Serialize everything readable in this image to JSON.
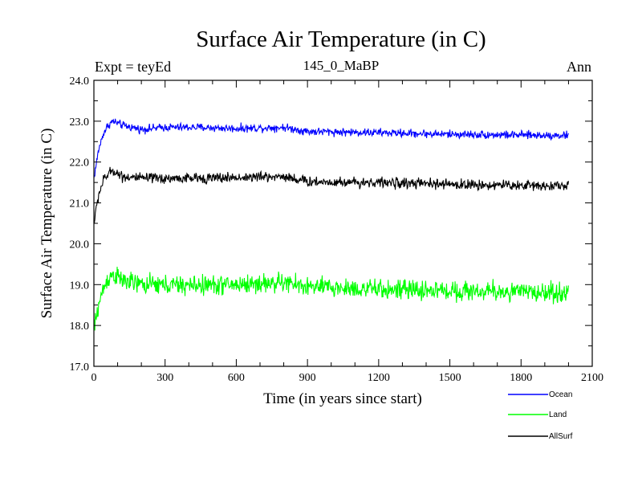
{
  "chart_data": {
    "type": "line",
    "title": "Surface Air Temperature (in C)",
    "subtitle": "145_0_MaBP",
    "expt_label": "Expt = teyEd",
    "period_label": "Ann",
    "xlabel": "Time (in years since start)",
    "ylabel": "Surface Air Temperature (in C)",
    "xlim": [
      0,
      2100
    ],
    "ylim": [
      17.0,
      24.0
    ],
    "x_ticks": [
      0,
      300,
      600,
      900,
      1200,
      1500,
      1800,
      2100
    ],
    "x_tick_labels": [
      "0",
      "300",
      "600",
      "900",
      "1200",
      "1500",
      "1800",
      "2100"
    ],
    "y_ticks": [
      17.0,
      18.0,
      19.0,
      20.0,
      21.0,
      22.0,
      23.0,
      24.0
    ],
    "y_tick_labels": [
      "17.0",
      "18.0",
      "19.0",
      "20.0",
      "21.0",
      "22.0",
      "23.0",
      "24.0"
    ],
    "x_end": 2000,
    "series": [
      {
        "name": "Ocean",
        "color": "#0000ff",
        "points": [
          [
            0,
            21.6
          ],
          [
            20,
            22.3
          ],
          [
            40,
            22.7
          ],
          [
            60,
            22.9
          ],
          [
            80,
            23.0
          ],
          [
            120,
            22.9
          ],
          [
            200,
            22.8
          ],
          [
            300,
            22.85
          ],
          [
            430,
            22.85
          ],
          [
            600,
            22.82
          ],
          [
            800,
            22.85
          ],
          [
            900,
            22.75
          ],
          [
            1200,
            22.72
          ],
          [
            1500,
            22.68
          ],
          [
            1800,
            22.66
          ],
          [
            2000,
            22.65
          ]
        ],
        "noise": 0.07
      },
      {
        "name": "Land",
        "color": "#00ff00",
        "points": [
          [
            0,
            17.9
          ],
          [
            20,
            18.5
          ],
          [
            40,
            18.9
          ],
          [
            60,
            19.15
          ],
          [
            80,
            19.25
          ],
          [
            120,
            19.1
          ],
          [
            200,
            19.0
          ],
          [
            400,
            18.98
          ],
          [
            600,
            19.0
          ],
          [
            800,
            19.05
          ],
          [
            900,
            18.95
          ],
          [
            1200,
            18.88
          ],
          [
            1500,
            18.85
          ],
          [
            1800,
            18.82
          ],
          [
            2000,
            18.8
          ]
        ],
        "noise": 0.17
      },
      {
        "name": "AllSurf",
        "color": "#000000",
        "points": [
          [
            0,
            20.5
          ],
          [
            20,
            21.2
          ],
          [
            40,
            21.55
          ],
          [
            60,
            21.7
          ],
          [
            80,
            21.8
          ],
          [
            120,
            21.65
          ],
          [
            200,
            21.6
          ],
          [
            400,
            21.6
          ],
          [
            600,
            21.62
          ],
          [
            800,
            21.65
          ],
          [
            900,
            21.52
          ],
          [
            1200,
            21.5
          ],
          [
            1500,
            21.45
          ],
          [
            1800,
            21.43
          ],
          [
            2000,
            21.42
          ]
        ],
        "noise": 0.09
      }
    ]
  }
}
